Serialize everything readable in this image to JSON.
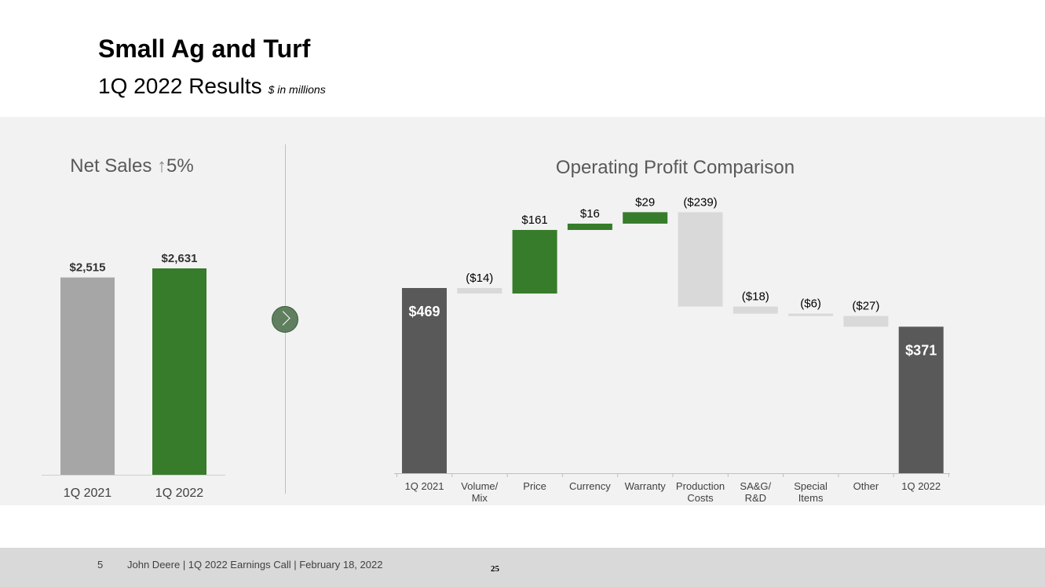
{
  "slide": {
    "title": "Small Ag and Turf",
    "subtitle": "1Q 2022 Results",
    "units": "$ in millions"
  },
  "net_sales": {
    "title": "Net Sales",
    "arrow": "↑",
    "change": "5%"
  },
  "operating_profit": {
    "title": "Operating Profit Comparison"
  },
  "chart_data": [
    {
      "type": "bar",
      "title": "Net Sales ↑5%",
      "categories": [
        "1Q 2021",
        "1Q 2022"
      ],
      "values": [
        2515,
        2631
      ],
      "labels": [
        "$2,515",
        "$2,631"
      ],
      "colors": [
        "#a6a6a6",
        "#367c2b"
      ]
    },
    {
      "type": "waterfall",
      "title": "Operating Profit Comparison",
      "categories": [
        "1Q 2021",
        "Volume/ Mix",
        "Price",
        "Currency",
        "Warranty",
        "Production Costs",
        "SA&G/ R&D",
        "Special Items",
        "Other",
        "1Q 2022"
      ],
      "tick_lines": [
        [
          "1Q 2021"
        ],
        [
          "Volume/",
          "Mix"
        ],
        [
          "Price"
        ],
        [
          "Currency"
        ],
        [
          "Warranty"
        ],
        [
          "Production",
          "Costs"
        ],
        [
          "SA&G/",
          "R&D"
        ],
        [
          "Special",
          "Items"
        ],
        [
          "Other"
        ],
        [
          "1Q 2022"
        ]
      ],
      "values": [
        469,
        -14,
        161,
        16,
        29,
        -239,
        -18,
        -6,
        -27,
        371
      ],
      "kinds": [
        "total",
        "delta",
        "delta",
        "delta",
        "delta",
        "delta",
        "delta",
        "delta",
        "delta",
        "total"
      ],
      "labels": [
        "$469",
        "($14)",
        "$161",
        "$16",
        "$29",
        "($239)",
        "($18)",
        "($6)",
        "($27)",
        "$371"
      ],
      "colors": {
        "total": "#595959",
        "increase": "#367c2b",
        "decrease": "#d9d9d9"
      }
    }
  ],
  "navigation": {
    "next_icon": "chevron-right-icon"
  },
  "footer": {
    "page": "5",
    "text": "John Deere | 1Q 2022 Earnings Call | February 18, 2022",
    "slide_number": "25"
  }
}
